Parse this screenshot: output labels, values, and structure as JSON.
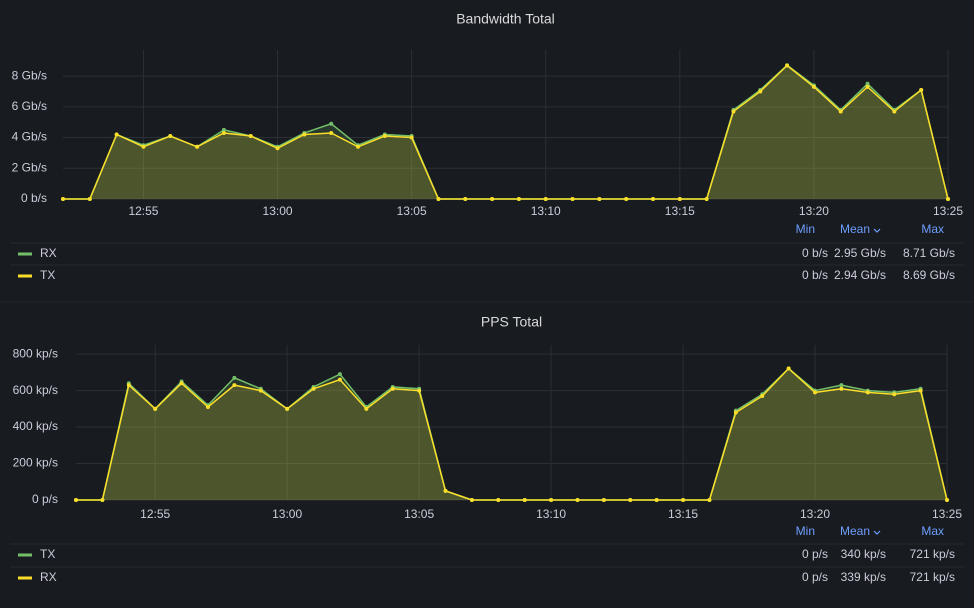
{
  "chart_data": [
    {
      "type": "line",
      "title": "Bandwidth Total",
      "x": [
        "12:52",
        "12:53",
        "12:54",
        "12:55",
        "12:56",
        "12:57",
        "12:58",
        "12:59",
        "13:00",
        "13:01",
        "13:02",
        "13:03",
        "13:04",
        "13:05",
        "13:06",
        "13:07",
        "13:08",
        "13:09",
        "13:10",
        "13:11",
        "13:12",
        "13:13",
        "13:14",
        "13:15",
        "13:16",
        "13:17",
        "13:18",
        "13:19",
        "13:20",
        "13:21",
        "13:22",
        "13:23",
        "13:24",
        "13:25"
      ],
      "xlim": [
        "12:52",
        "13:25"
      ],
      "xticks": [
        "12:55",
        "13:00",
        "13:05",
        "13:10",
        "13:15",
        "13:20",
        "13:25"
      ],
      "ylim": [
        0,
        9.7
      ],
      "yticks": [
        {
          "value": 0,
          "label": "0 b/s"
        },
        {
          "value": 2,
          "label": "2 Gb/s"
        },
        {
          "value": 4,
          "label": "4 Gb/s"
        },
        {
          "value": 6,
          "label": "6 Gb/s"
        },
        {
          "value": 8,
          "label": "8 Gb/s"
        }
      ],
      "grid": true,
      "legend_columns": [
        "Min",
        "Mean",
        "Max"
      ],
      "series": [
        {
          "name": "RX",
          "color": "#73bf69",
          "stats": [
            "0 b/s",
            "2.95 Gb/s",
            "8.71 Gb/s"
          ],
          "values": [
            0,
            0,
            4.2,
            3.5,
            4.1,
            3.4,
            4.5,
            4.1,
            3.4,
            4.3,
            4.9,
            3.5,
            4.2,
            4.1,
            0,
            0,
            0,
            0,
            0,
            0,
            0,
            0,
            0,
            0,
            0,
            5.8,
            7.1,
            8.71,
            7.4,
            5.8,
            7.5,
            5.8,
            7.1,
            0
          ]
        },
        {
          "name": "TX",
          "color": "#fade2a",
          "stats": [
            "0 b/s",
            "2.94 Gb/s",
            "8.69 Gb/s"
          ],
          "values": [
            0,
            0,
            4.2,
            3.4,
            4.1,
            3.4,
            4.3,
            4.1,
            3.3,
            4.2,
            4.3,
            3.4,
            4.1,
            4.0,
            0,
            0,
            0,
            0,
            0,
            0,
            0,
            0,
            0,
            0,
            0,
            5.7,
            7.0,
            8.69,
            7.3,
            5.7,
            7.3,
            5.7,
            7.1,
            0
          ]
        }
      ]
    },
    {
      "type": "line",
      "title": "PPS Total",
      "x": [
        "12:52",
        "12:53",
        "12:54",
        "12:55",
        "12:56",
        "12:57",
        "12:58",
        "12:59",
        "13:00",
        "13:01",
        "13:02",
        "13:03",
        "13:04",
        "13:05",
        "13:06",
        "13:07",
        "13:08",
        "13:09",
        "13:10",
        "13:11",
        "13:12",
        "13:13",
        "13:14",
        "13:15",
        "13:16",
        "13:17",
        "13:18",
        "13:19",
        "13:20",
        "13:21",
        "13:22",
        "13:23",
        "13:24",
        "13:25"
      ],
      "xlim": [
        "12:52",
        "13:25"
      ],
      "xticks": [
        "12:55",
        "13:00",
        "13:05",
        "13:10",
        "13:15",
        "13:20",
        "13:25"
      ],
      "ylim": [
        0,
        850
      ],
      "yticks": [
        {
          "value": 0,
          "label": "0 p/s"
        },
        {
          "value": 200,
          "label": "200 kp/s"
        },
        {
          "value": 400,
          "label": "400 kp/s"
        },
        {
          "value": 600,
          "label": "600 kp/s"
        },
        {
          "value": 800,
          "label": "800 kp/s"
        }
      ],
      "grid": true,
      "legend_columns": [
        "Min",
        "Mean",
        "Max"
      ],
      "series": [
        {
          "name": "TX",
          "color": "#73bf69",
          "stats": [
            "0 p/s",
            "340 kp/s",
            "721 kp/s"
          ],
          "values": [
            0,
            0,
            640,
            500,
            650,
            520,
            670,
            610,
            500,
            620,
            690,
            510,
            620,
            610,
            50,
            0,
            0,
            0,
            0,
            0,
            0,
            0,
            0,
            0,
            0,
            490,
            580,
            721,
            600,
            630,
            600,
            590,
            610,
            0
          ]
        },
        {
          "name": "RX",
          "color": "#fade2a",
          "stats": [
            "0 p/s",
            "339 kp/s",
            "721 kp/s"
          ],
          "values": [
            0,
            0,
            630,
            500,
            640,
            510,
            630,
            600,
            500,
            610,
            660,
            500,
            610,
            600,
            50,
            0,
            0,
            0,
            0,
            0,
            0,
            0,
            0,
            0,
            0,
            480,
            570,
            721,
            590,
            610,
            590,
            580,
            600,
            0
          ]
        }
      ]
    }
  ]
}
